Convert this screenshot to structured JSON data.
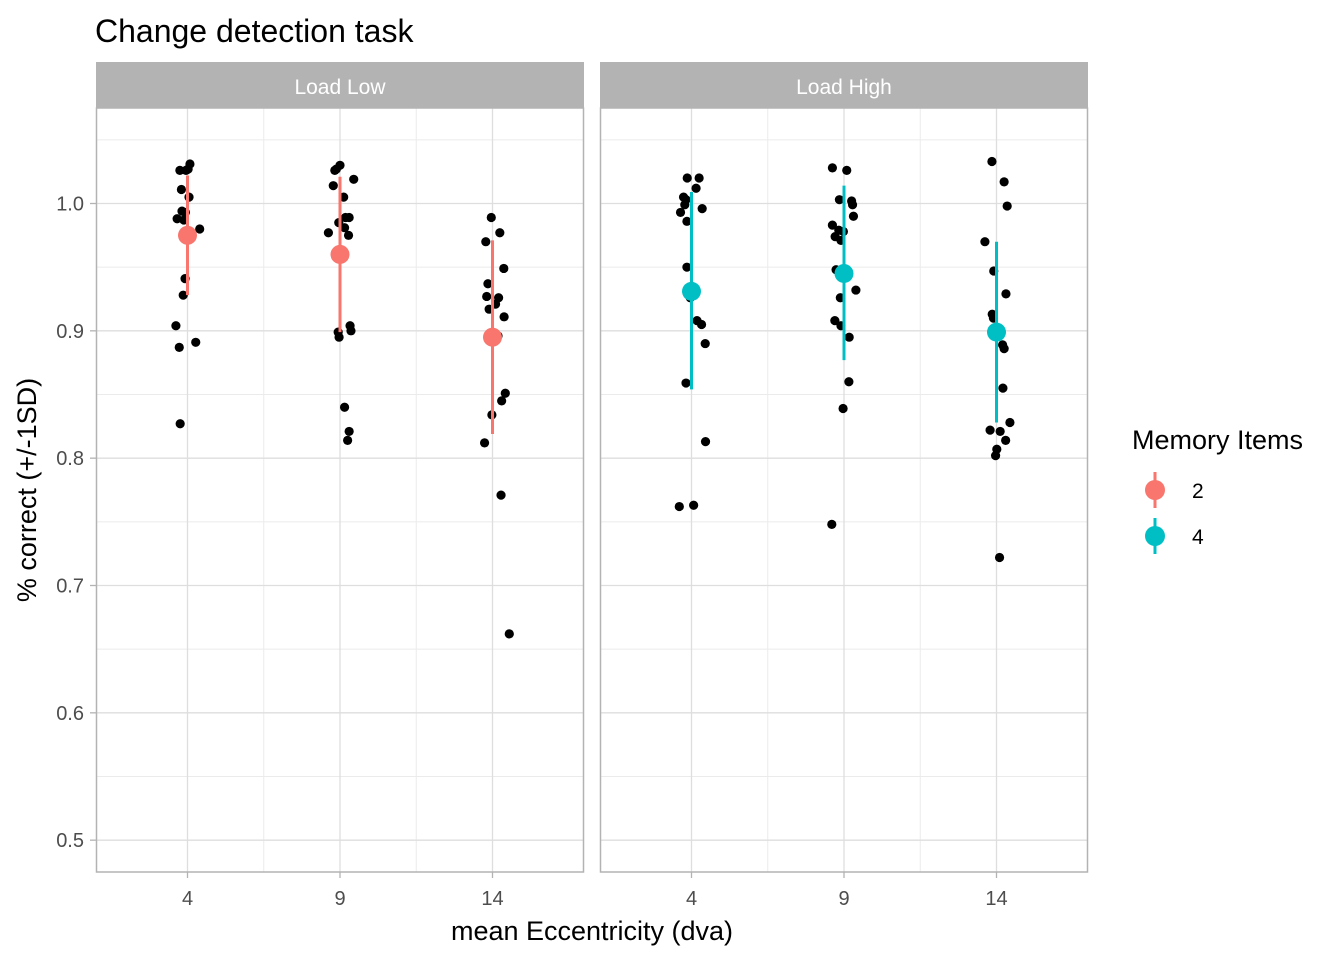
{
  "chart_data": {
    "type": "scatter",
    "title": "Change detection task",
    "xlabel": "mean Eccentricity (dva)",
    "ylabel": "% correct (+/-1SD)",
    "x_ticks": [
      "4",
      "9",
      "14"
    ],
    "y_ticks": [
      "0.5",
      "0.6",
      "0.7",
      "0.8",
      "0.9",
      "1.0"
    ],
    "ylim": [
      0.475,
      1.075
    ],
    "grid": true,
    "legend": {
      "title": "Memory Items",
      "placement": "right",
      "entries": [
        {
          "label": "2",
          "color": "#F8766D"
        },
        {
          "label": "4",
          "color": "#00BFC4"
        }
      ]
    },
    "panels": [
      {
        "strip": "Load Low",
        "memory_items": "2",
        "color": "#F8766D",
        "summary": [
          {
            "x": 4,
            "mean": 0.975,
            "low": 0.928,
            "high": 1.022
          },
          {
            "x": 9,
            "mean": 0.96,
            "low": 0.899,
            "high": 1.021
          },
          {
            "x": 14,
            "mean": 0.895,
            "low": 0.819,
            "high": 0.971
          }
        ],
        "points": [
          [
            4.08,
            1.031
          ],
          [
            3.75,
            1.026
          ],
          [
            3.95,
            1.026
          ],
          [
            4.02,
            1.027
          ],
          [
            3.8,
            1.011
          ],
          [
            4.05,
            1.005
          ],
          [
            3.82,
            0.994
          ],
          [
            3.93,
            0.993
          ],
          [
            3.66,
            0.988
          ],
          [
            3.88,
            0.987
          ],
          [
            4.4,
            0.98
          ],
          [
            3.87,
            0.975
          ],
          [
            3.92,
            0.941
          ],
          [
            3.86,
            0.928
          ],
          [
            3.62,
            0.904
          ],
          [
            4.27,
            0.891
          ],
          [
            3.73,
            0.887
          ],
          [
            3.76,
            0.827
          ],
          [
            9.0,
            1.03
          ],
          [
            8.88,
            1.027
          ],
          [
            8.83,
            1.026
          ],
          [
            9.45,
            1.019
          ],
          [
            8.78,
            1.014
          ],
          [
            9.12,
            1.005
          ],
          [
            9.18,
            0.989
          ],
          [
            8.96,
            0.985
          ],
          [
            9.3,
            0.989
          ],
          [
            9.15,
            0.981
          ],
          [
            8.62,
            0.977
          ],
          [
            9.28,
            0.975
          ],
          [
            8.94,
            0.899
          ],
          [
            9.33,
            0.904
          ],
          [
            9.36,
            0.9
          ],
          [
            8.97,
            0.895
          ],
          [
            9.15,
            0.84
          ],
          [
            9.3,
            0.821
          ],
          [
            9.25,
            0.814
          ],
          [
            13.96,
            0.989
          ],
          [
            14.24,
            0.977
          ],
          [
            13.78,
            0.97
          ],
          [
            14.37,
            0.949
          ],
          [
            13.85,
            0.937
          ],
          [
            14.2,
            0.926
          ],
          [
            13.81,
            0.927
          ],
          [
            14.1,
            0.921
          ],
          [
            13.89,
            0.917
          ],
          [
            14.38,
            0.911
          ],
          [
            13.93,
            0.898
          ],
          [
            14.18,
            0.896
          ],
          [
            14.42,
            0.851
          ],
          [
            14.3,
            0.845
          ],
          [
            13.98,
            0.834
          ],
          [
            13.74,
            0.812
          ],
          [
            14.28,
            0.771
          ],
          [
            14.55,
            0.662
          ]
        ]
      },
      {
        "strip": "Load High",
        "memory_items": "4",
        "color": "#00BFC4",
        "summary": [
          {
            "x": 4,
            "mean": 0.931,
            "low": 0.854,
            "high": 1.009
          },
          {
            "x": 9,
            "mean": 0.945,
            "low": 0.877,
            "high": 1.014
          },
          {
            "x": 14,
            "mean": 0.899,
            "low": 0.828,
            "high": 0.97
          }
        ],
        "points": [
          [
            3.86,
            1.02
          ],
          [
            4.25,
            1.02
          ],
          [
            4.15,
            1.012
          ],
          [
            3.74,
            1.005
          ],
          [
            3.82,
            1.003
          ],
          [
            3.78,
            0.999
          ],
          [
            4.35,
            0.996
          ],
          [
            3.64,
            0.993
          ],
          [
            3.85,
            0.986
          ],
          [
            3.85,
            0.95
          ],
          [
            3.95,
            0.932
          ],
          [
            4.07,
            0.929
          ],
          [
            3.96,
            0.926
          ],
          [
            4.18,
            0.908
          ],
          [
            4.33,
            0.905
          ],
          [
            4.45,
            0.89
          ],
          [
            3.82,
            0.859
          ],
          [
            4.46,
            0.813
          ],
          [
            3.6,
            0.762
          ],
          [
            4.07,
            0.763
          ],
          [
            8.62,
            1.028
          ],
          [
            9.09,
            1.026
          ],
          [
            9.25,
            1.002
          ],
          [
            8.85,
            1.003
          ],
          [
            9.28,
            0.999
          ],
          [
            8.62,
            0.983
          ],
          [
            9.31,
            0.99
          ],
          [
            8.83,
            0.979
          ],
          [
            8.98,
            0.978
          ],
          [
            8.9,
            0.971
          ],
          [
            8.71,
            0.974
          ],
          [
            8.74,
            0.948
          ],
          [
            8.97,
            0.947
          ],
          [
            9.39,
            0.932
          ],
          [
            8.88,
            0.926
          ],
          [
            8.7,
            0.908
          ],
          [
            8.9,
            0.904
          ],
          [
            9.17,
            0.895
          ],
          [
            9.16,
            0.86
          ],
          [
            8.97,
            0.839
          ],
          [
            8.6,
            0.748
          ],
          [
            13.85,
            1.033
          ],
          [
            14.25,
            1.017
          ],
          [
            14.35,
            0.998
          ],
          [
            13.62,
            0.97
          ],
          [
            13.91,
            0.947
          ],
          [
            14.31,
            0.929
          ],
          [
            13.86,
            0.913
          ],
          [
            13.9,
            0.91
          ],
          [
            14.2,
            0.889
          ],
          [
            14.25,
            0.886
          ],
          [
            14.21,
            0.855
          ],
          [
            14.44,
            0.828
          ],
          [
            13.79,
            0.822
          ],
          [
            14.12,
            0.821
          ],
          [
            14.3,
            0.814
          ],
          [
            14.01,
            0.807
          ],
          [
            13.97,
            0.802
          ],
          [
            14.1,
            0.722
          ]
        ]
      }
    ]
  }
}
